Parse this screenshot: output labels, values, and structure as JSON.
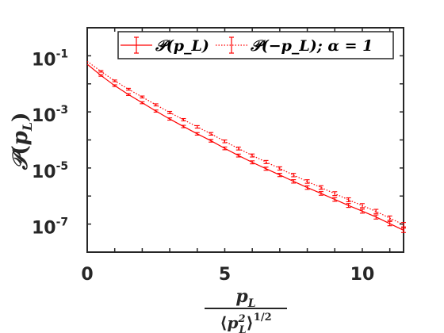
{
  "chart_data": {
    "type": "line",
    "xlabel": {
      "numerator": "p_L",
      "denominator": "⟨p_L^2⟩^1/2"
    },
    "ylabel": "𝒫(p_L)",
    "xlim": [
      0,
      11.5
    ],
    "ylim": [
      1e-08,
      1
    ],
    "y_scale": "log",
    "grid": false,
    "legend_position": "top-right",
    "x_ticks": [
      {
        "value": 0,
        "label": "0"
      },
      {
        "value": 5,
        "label": "5"
      },
      {
        "value": 10,
        "label": "10"
      }
    ],
    "y_ticks": [
      {
        "value": 0.1,
        "base": "10",
        "exp": "-1"
      },
      {
        "value": 0.001,
        "base": "10",
        "exp": "-3"
      },
      {
        "value": 1e-05,
        "base": "10",
        "exp": "-5"
      },
      {
        "value": 1e-07,
        "base": "10",
        "exp": "-7"
      }
    ],
    "legend": {
      "entry1": "𝒫(p_L)",
      "entry2": "𝒫(−p_L); α = 1"
    },
    "series": [
      {
        "name": "𝒫(p_L)",
        "style": "solid",
        "color": "#ff0000",
        "x": [
          0.0,
          0.5,
          1.0,
          1.5,
          2.0,
          2.5,
          3.0,
          3.5,
          4.0,
          4.5,
          5.0,
          5.5,
          6.0,
          6.5,
          7.0,
          7.5,
          8.0,
          8.5,
          9.0,
          9.5,
          10.0,
          10.5,
          11.0,
          11.5
        ],
        "y": [
          0.05,
          0.0199,
          0.00861,
          0.00416,
          0.00212,
          0.00107,
          0.000558,
          0.000301,
          0.000165,
          9.33e-05,
          5e-05,
          2.78e-05,
          1.59e-05,
          9.41e-06,
          5.64e-06,
          3.33e-06,
          2e-06,
          1.24e-06,
          7.57e-07,
          4.61e-07,
          2.89e-07,
          1.79e-07,
          1.04e-07,
          6e-08
        ]
      },
      {
        "name": "𝒫(−p_L); α = 1",
        "style": "dotted",
        "color": "#ff0000",
        "x": [
          0.0,
          0.5,
          1.0,
          1.5,
          2.0,
          2.5,
          3.0,
          3.5,
          4.0,
          4.5,
          5.0,
          5.5,
          6.0,
          6.5,
          7.0,
          7.5,
          8.0,
          8.5,
          9.0,
          9.5,
          10.0,
          10.5,
          11.0,
          11.5
        ],
        "y": [
          0.063,
          0.0279,
          0.0128,
          0.00642,
          0.0034,
          0.00178,
          0.00095,
          0.000526,
          0.000293,
          0.000165,
          8.9e-05,
          4.94e-05,
          2.79e-05,
          1.63e-05,
          9.63e-06,
          5.59e-06,
          3.3e-06,
          2.01e-06,
          1.22e-06,
          7.36e-07,
          4.55e-07,
          2.83e-07,
          1.63e-07,
          9.5e-08
        ]
      }
    ]
  }
}
